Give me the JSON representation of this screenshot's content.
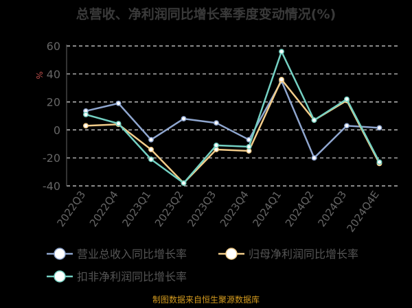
{
  "chart_data": {
    "type": "line",
    "title": "总营收、净利润同比增长率季度变动情况(%)",
    "ylabel": "%",
    "ylim": [
      -40,
      60
    ],
    "yticks": [
      60,
      40,
      20,
      0,
      -20,
      -40
    ],
    "grid": true,
    "legend_position": "bottom",
    "categories": [
      "2022Q3",
      "2022Q4",
      "2023Q1",
      "2023Q2",
      "2023Q3",
      "2023Q4",
      "2024Q1",
      "2024Q2",
      "2024Q3",
      "2024Q4E"
    ],
    "series": [
      {
        "name": "营业总收入同比增长率",
        "color": "#8fa6cf",
        "values": [
          13.5,
          19,
          -7,
          8,
          5,
          -7,
          35,
          -20,
          3,
          1.5
        ]
      },
      {
        "name": "归母净利润同比增长率",
        "color": "#f3cd8a",
        "values": [
          3,
          4,
          -14,
          -38,
          -14,
          -15,
          36,
          7,
          21,
          -24
        ]
      },
      {
        "name": "扣非净利润同比增长率",
        "color": "#74d1c3",
        "values": [
          11,
          4.5,
          -21,
          -38,
          -11,
          -12,
          56,
          7,
          22,
          -23
        ]
      }
    ]
  },
  "footer": "制图数据来自恒生聚源数据库"
}
